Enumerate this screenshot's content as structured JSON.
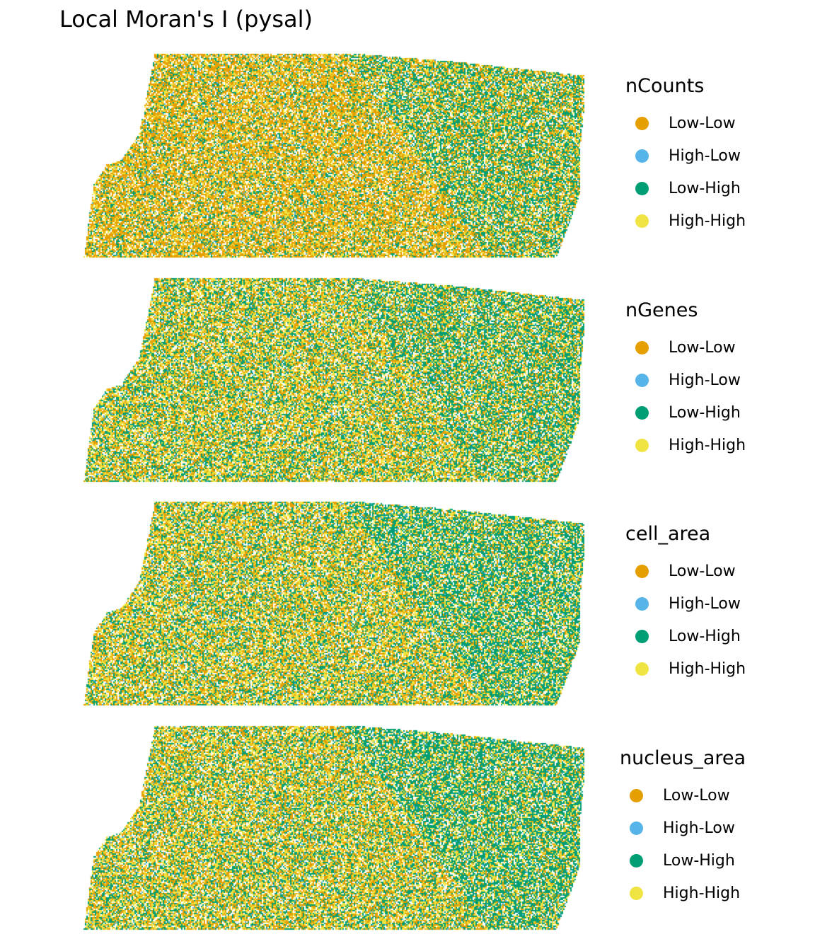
{
  "title": "Local Moran's I (pysal)",
  "colors": {
    "Low-Low": "#E69F00",
    "High-Low": "#56B4E9",
    "Low-High": "#009E73",
    "High-High": "#F0E442"
  },
  "chart_data": [
    {
      "type": "scatter",
      "title": "",
      "legend_title": "nCounts",
      "legend_position": "right",
      "categories": [
        "Low-Low",
        "High-Low",
        "Low-High",
        "High-High"
      ],
      "grid": false,
      "axes": false
    },
    {
      "type": "scatter",
      "title": "",
      "legend_title": "nGenes",
      "legend_position": "right",
      "categories": [
        "Low-Low",
        "High-Low",
        "Low-High",
        "High-High"
      ],
      "grid": false,
      "axes": false
    },
    {
      "type": "scatter",
      "title": "",
      "legend_title": "cell_area",
      "legend_position": "right",
      "categories": [
        "Low-Low",
        "High-Low",
        "Low-High",
        "High-High"
      ],
      "grid": false,
      "axes": false
    },
    {
      "type": "scatter",
      "title": "",
      "legend_title": "nucleus_area",
      "legend_position": "right",
      "categories": [
        "Low-Low",
        "High-Low",
        "Low-High",
        "High-High"
      ],
      "grid": false,
      "axes": false
    }
  ]
}
